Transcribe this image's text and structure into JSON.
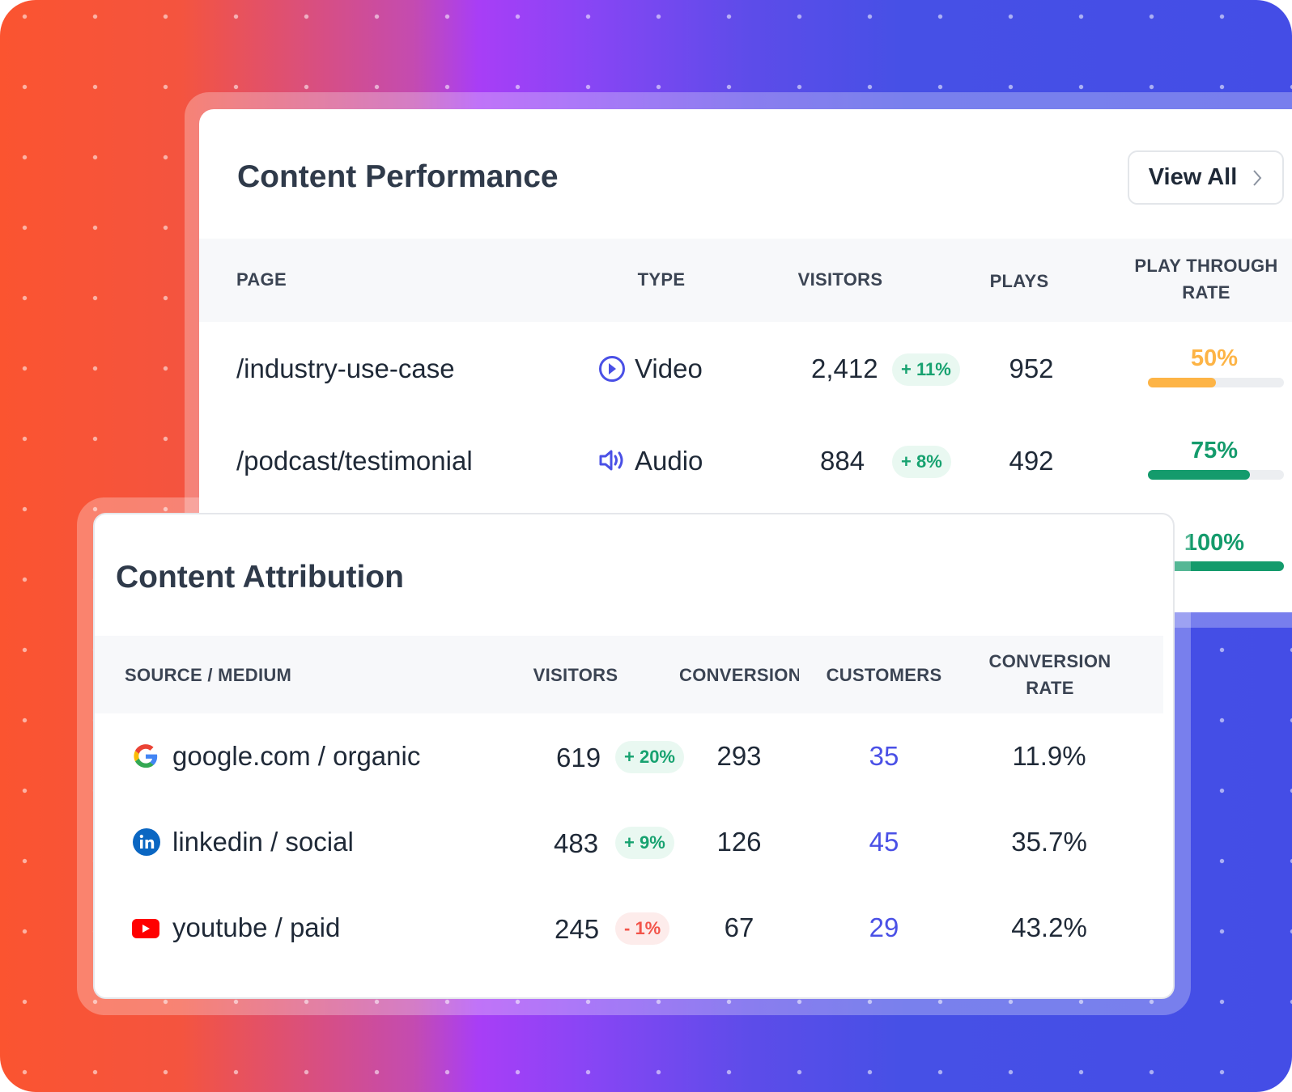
{
  "performance": {
    "title": "Content Performance",
    "view_all": "View All",
    "columns": [
      "PAGE",
      "TYPE",
      "VISITORS",
      "PLAYS",
      "PLAY THROUGH RATE"
    ],
    "rows": [
      {
        "page": "/industry-use-case",
        "type": "Video",
        "type_icon": "play-circle-icon",
        "visitors": "2,412",
        "change": "+ 11%",
        "plays": "952",
        "rate": "50%",
        "rate_value": 50,
        "rate_color": "#fdb446"
      },
      {
        "page": "/podcast/testimonial",
        "type": "Audio",
        "type_icon": "speaker-icon",
        "visitors": "884",
        "change": "+ 8%",
        "plays": "492",
        "rate": "75%",
        "rate_value": 75,
        "rate_color": "#149b6c"
      },
      {
        "rate": "100%",
        "rate_value": 100,
        "rate_color": "#149b6c"
      }
    ]
  },
  "attribution": {
    "title": "Content Attribution",
    "columns": [
      "SOURCE / MEDIUM",
      "VISITORS",
      "CONVERSION",
      "CUSTOMERS",
      "CONVERSION RATE"
    ],
    "rows": [
      {
        "source": "google.com / organic",
        "icon": "google-icon",
        "visitors": "619",
        "change": "+ 20%",
        "trend": "up",
        "conversion": "293",
        "customers": "35",
        "rate": "11.9%"
      },
      {
        "source": "linkedin / social",
        "icon": "linkedin-icon",
        "visitors": "483",
        "change": "+ 9%",
        "trend": "up",
        "conversion": "126",
        "customers": "45",
        "rate": "35.7%"
      },
      {
        "source": "youtube / paid",
        "icon": "youtube-icon",
        "visitors": "245",
        "change": "- 1%",
        "trend": "down",
        "conversion": "67",
        "customers": "29",
        "rate": "43.2%"
      }
    ]
  },
  "colors": {
    "accent": "#4a50e6",
    "positive": "#17a270",
    "negative": "#f2544a",
    "warning": "#fdb446"
  }
}
